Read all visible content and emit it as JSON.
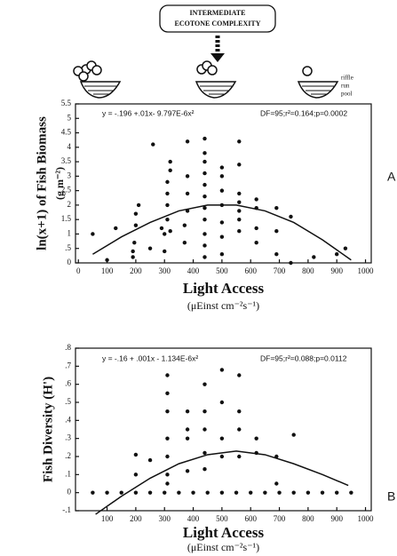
{
  "header": {
    "box_lines": [
      "INTERMEDIATE",
      "ECOTONE COMPLEXITY"
    ],
    "stream_labels": [
      "riffle",
      "run",
      "pool"
    ]
  },
  "chart_data": [
    {
      "type": "scatter",
      "panel": "A",
      "equation": "y = -.196 +.01x- 9.797E-6x²",
      "stats": "DF=95;r²=0.164;p=0.0002",
      "y_label": "ln(x+1) of Fish Biomass",
      "y_unit": "(g m⁻²)",
      "x_label": "Light Access",
      "x_unit": "(μEinst cm⁻²s⁻¹)",
      "xlim": [
        -10,
        1020
      ],
      "xticks": [
        0,
        100,
        200,
        300,
        400,
        500,
        600,
        700,
        800,
        900,
        1000
      ],
      "ylim": [
        0,
        5.5
      ],
      "yticks": [
        0,
        {
          "value": 0.5,
          "label": ".5"
        },
        1,
        1.5,
        2,
        2.5,
        3,
        3.5,
        4,
        4.5,
        5,
        5.5
      ],
      "series": [
        {
          "color": "#111111",
          "x": [
            50,
            100,
            130,
            190,
            190,
            195,
            200,
            200,
            210,
            250,
            260,
            290,
            300,
            300,
            310,
            310,
            310,
            310,
            320,
            320,
            320,
            370,
            370,
            380,
            380,
            380,
            380,
            440,
            440,
            440,
            440,
            440,
            440,
            440,
            440,
            440,
            440,
            440,
            500,
            500,
            500,
            500,
            500,
            500,
            500,
            560,
            560,
            560,
            560,
            560,
            560,
            560,
            620,
            620,
            620,
            620,
            690,
            690,
            690,
            740,
            740,
            820,
            900,
            930
          ],
          "values": [
            1.0,
            0.1,
            1.2,
            0.2,
            0.4,
            0.7,
            1.3,
            1.7,
            2.0,
            0.5,
            4.1,
            1.2,
            0.4,
            1.0,
            1.5,
            2.0,
            2.4,
            2.8,
            1.1,
            3.2,
            3.5,
            0.7,
            1.3,
            1.8,
            2.4,
            3.0,
            4.2,
            0.2,
            0.6,
            1.0,
            1.5,
            1.9,
            2.3,
            2.7,
            3.1,
            3.5,
            3.8,
            4.3,
            0.3,
            0.9,
            1.4,
            2.0,
            2.5,
            3.0,
            3.3,
            1.1,
            1.5,
            1.8,
            2.1,
            2.4,
            3.4,
            4.2,
            0.7,
            1.2,
            1.9,
            2.2,
            0.3,
            1.1,
            1.9,
            1.6,
            0.0,
            0.2,
            0.3,
            0.5
          ]
        }
      ],
      "fit": {
        "x": [
          50,
          150,
          250,
          350,
          450,
          550,
          650,
          750,
          850,
          950
        ],
        "values": [
          0.3,
          0.9,
          1.4,
          1.8,
          2.0,
          2.0,
          1.8,
          1.4,
          0.8,
          0.1
        ]
      }
    },
    {
      "type": "scatter",
      "panel": "B",
      "equation": "y = -.16 + .001x - 1.134E-6x²",
      "stats": "DF=95;r²=0.088;p=0.0112",
      "y_label": "Fish Diversity (H')",
      "x_label": "Light Access",
      "x_unit": "(μEinst cm⁻²s⁻¹)",
      "xlim": [
        -10,
        1020
      ],
      "xticks": [
        100,
        200,
        300,
        400,
        500,
        600,
        700,
        800,
        900,
        1000
      ],
      "ylim": [
        -0.1,
        0.8
      ],
      "yticks": [
        {
          "value": -0.1,
          "label": "-.1"
        },
        0,
        {
          "value": 0.1,
          "label": ".1"
        },
        {
          "value": 0.2,
          "label": ".2"
        },
        {
          "value": 0.3,
          "label": ".3"
        },
        {
          "value": 0.4,
          "label": ".4"
        },
        {
          "value": 0.5,
          "label": ".5"
        },
        {
          "value": 0.6,
          "label": ".6"
        },
        {
          "value": 0.7,
          "label": ".7"
        },
        {
          "value": 0.8,
          "label": ".8"
        }
      ],
      "series": [
        {
          "color": "#111111",
          "x": [
            50,
            100,
            150,
            200,
            250,
            300,
            350,
            400,
            450,
            500,
            550,
            600,
            650,
            700,
            750,
            800,
            850,
            900,
            950,
            200,
            200,
            250,
            310,
            310,
            310,
            310,
            310,
            310,
            310,
            380,
            380,
            380,
            380,
            440,
            440,
            440,
            440,
            440,
            500,
            500,
            500,
            500,
            560,
            560,
            560,
            560,
            620,
            620,
            690,
            690,
            750
          ],
          "values": [
            0,
            0,
            0,
            0,
            0,
            0,
            0,
            0,
            0,
            0,
            0,
            0,
            0,
            0,
            0,
            0,
            0,
            0,
            0,
            0.21,
            0.1,
            0.18,
            0.65,
            0.55,
            0.45,
            0.3,
            0.2,
            0.1,
            0.05,
            0.45,
            0.35,
            0.3,
            0.12,
            0.6,
            0.45,
            0.35,
            0.22,
            0.13,
            0.68,
            0.5,
            0.3,
            0.2,
            0.65,
            0.45,
            0.35,
            0.2,
            0.3,
            0.22,
            0.2,
            0.05,
            0.32
          ]
        }
      ],
      "fit": {
        "x": [
          60,
          150,
          250,
          350,
          450,
          550,
          650,
          750,
          850,
          940
        ],
        "values": [
          -0.12,
          -0.02,
          0.08,
          0.16,
          0.21,
          0.23,
          0.21,
          0.16,
          0.1,
          0.04
        ]
      }
    }
  ]
}
